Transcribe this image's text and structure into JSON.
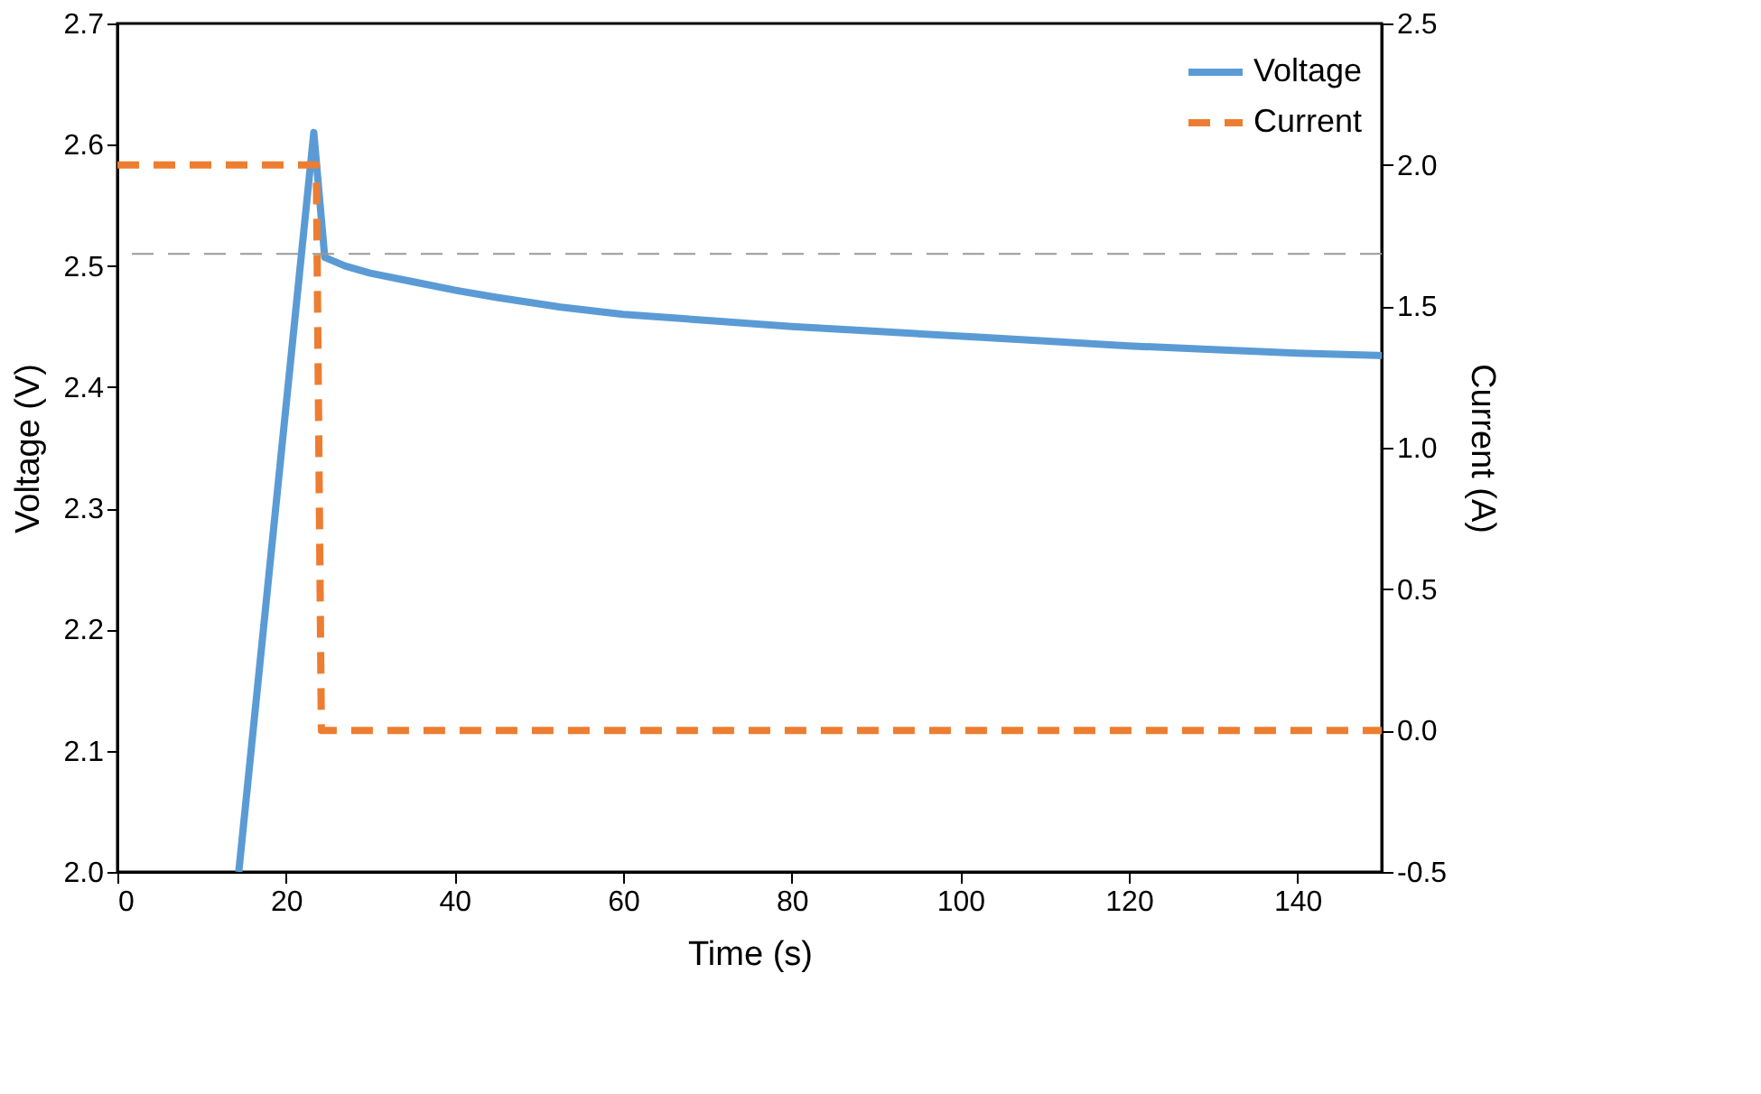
{
  "chart_data": {
    "type": "line",
    "xlabel": "Time (s)",
    "ylabel": "Voltage (V)",
    "y2label": "Current (A)",
    "xlim": [
      0,
      150
    ],
    "xticks": [
      0,
      20,
      40,
      60,
      80,
      100,
      120,
      140
    ],
    "ylim": [
      2.0,
      2.7
    ],
    "yticks": [
      {
        "value": 2.0,
        "label": "2.0"
      },
      2.1,
      2.2,
      2.3,
      2.4,
      2.5,
      2.6,
      2.7
    ],
    "y2lim": [
      -0.5,
      2.5
    ],
    "y2ticks": [
      {
        "value": -0.5,
        "label": "-0.5"
      },
      {
        "value": 0,
        "label": "0.0"
      },
      {
        "value": 0.5,
        "label": "0.5"
      },
      {
        "value": 1,
        "label": "1.0"
      },
      {
        "value": 1.5,
        "label": "1.5"
      },
      {
        "value": 2,
        "label": "2.0"
      },
      {
        "value": 2.5,
        "label": "2.5"
      }
    ],
    "grid": false,
    "legend": "top right",
    "marker": "none",
    "ref_lines": [
      {
        "axis": "y",
        "value": 2.51,
        "color": "#999999",
        "line_style": "dashed"
      }
    ],
    "series": [
      {
        "name": "Voltage",
        "color": "#5b9bd5",
        "line_style": "solid",
        "axis": "y",
        "x": [
          14.4,
          23.3,
          24.6,
          27,
          30,
          35,
          40,
          45,
          52.6,
          60,
          70,
          80,
          90,
          102.6,
          110,
          120,
          130,
          140,
          150
        ],
        "values": [
          2.0,
          2.61,
          2.507,
          2.5,
          2.494,
          2.487,
          2.48,
          2.474,
          2.466,
          2.46,
          2.455,
          2.45,
          2.446,
          2.441,
          2.438,
          2.434,
          2.431,
          2.428,
          2.426
        ]
      },
      {
        "name": "Current",
        "color": "#ed7d31",
        "line_style": "dashed",
        "axis": "y2",
        "x": [
          0,
          23.6,
          24.2,
          150
        ],
        "values": [
          2.0,
          2.0,
          0.0,
          0.0
        ]
      }
    ]
  }
}
